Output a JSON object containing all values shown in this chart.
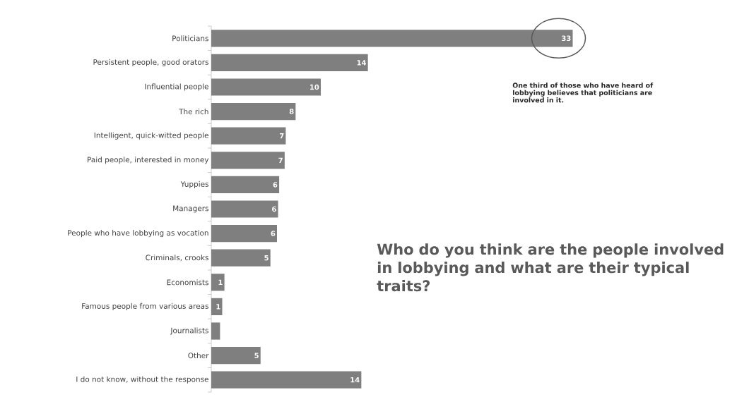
{
  "chart_data": {
    "type": "bar",
    "orientation": "horizontal",
    "title": "Who do you think are the people involved in lobbying and what are their typical traits?",
    "categories": [
      "Politicians",
      "Persistent people, good orators",
      "Influential people",
      "The rich",
      "Intelligent, quick-witted people",
      "Paid people, interested in money",
      "Yuppies",
      "Managers",
      "People who have lobbying as vocation",
      "Criminals, crooks",
      "Economists",
      "Famous people from various areas",
      "Journalists",
      "Other",
      "I do not know, without the response"
    ],
    "values": [
      33,
      14.3,
      10,
      7.7,
      6.8,
      6.7,
      6.2,
      6.1,
      6.0,
      5.4,
      1.2,
      1.0,
      0.8,
      4.5,
      13.7
    ],
    "value_labels": [
      "33",
      "14",
      "10",
      "8",
      "7",
      "7",
      "6",
      "6",
      "6",
      "5",
      "1",
      "1",
      null,
      "5",
      "14"
    ],
    "color": "#7f7f7f",
    "tick_labels": "y",
    "annotations": [
      "One third of those who have heard of lobbying believes that politicians are involved in it."
    ]
  }
}
